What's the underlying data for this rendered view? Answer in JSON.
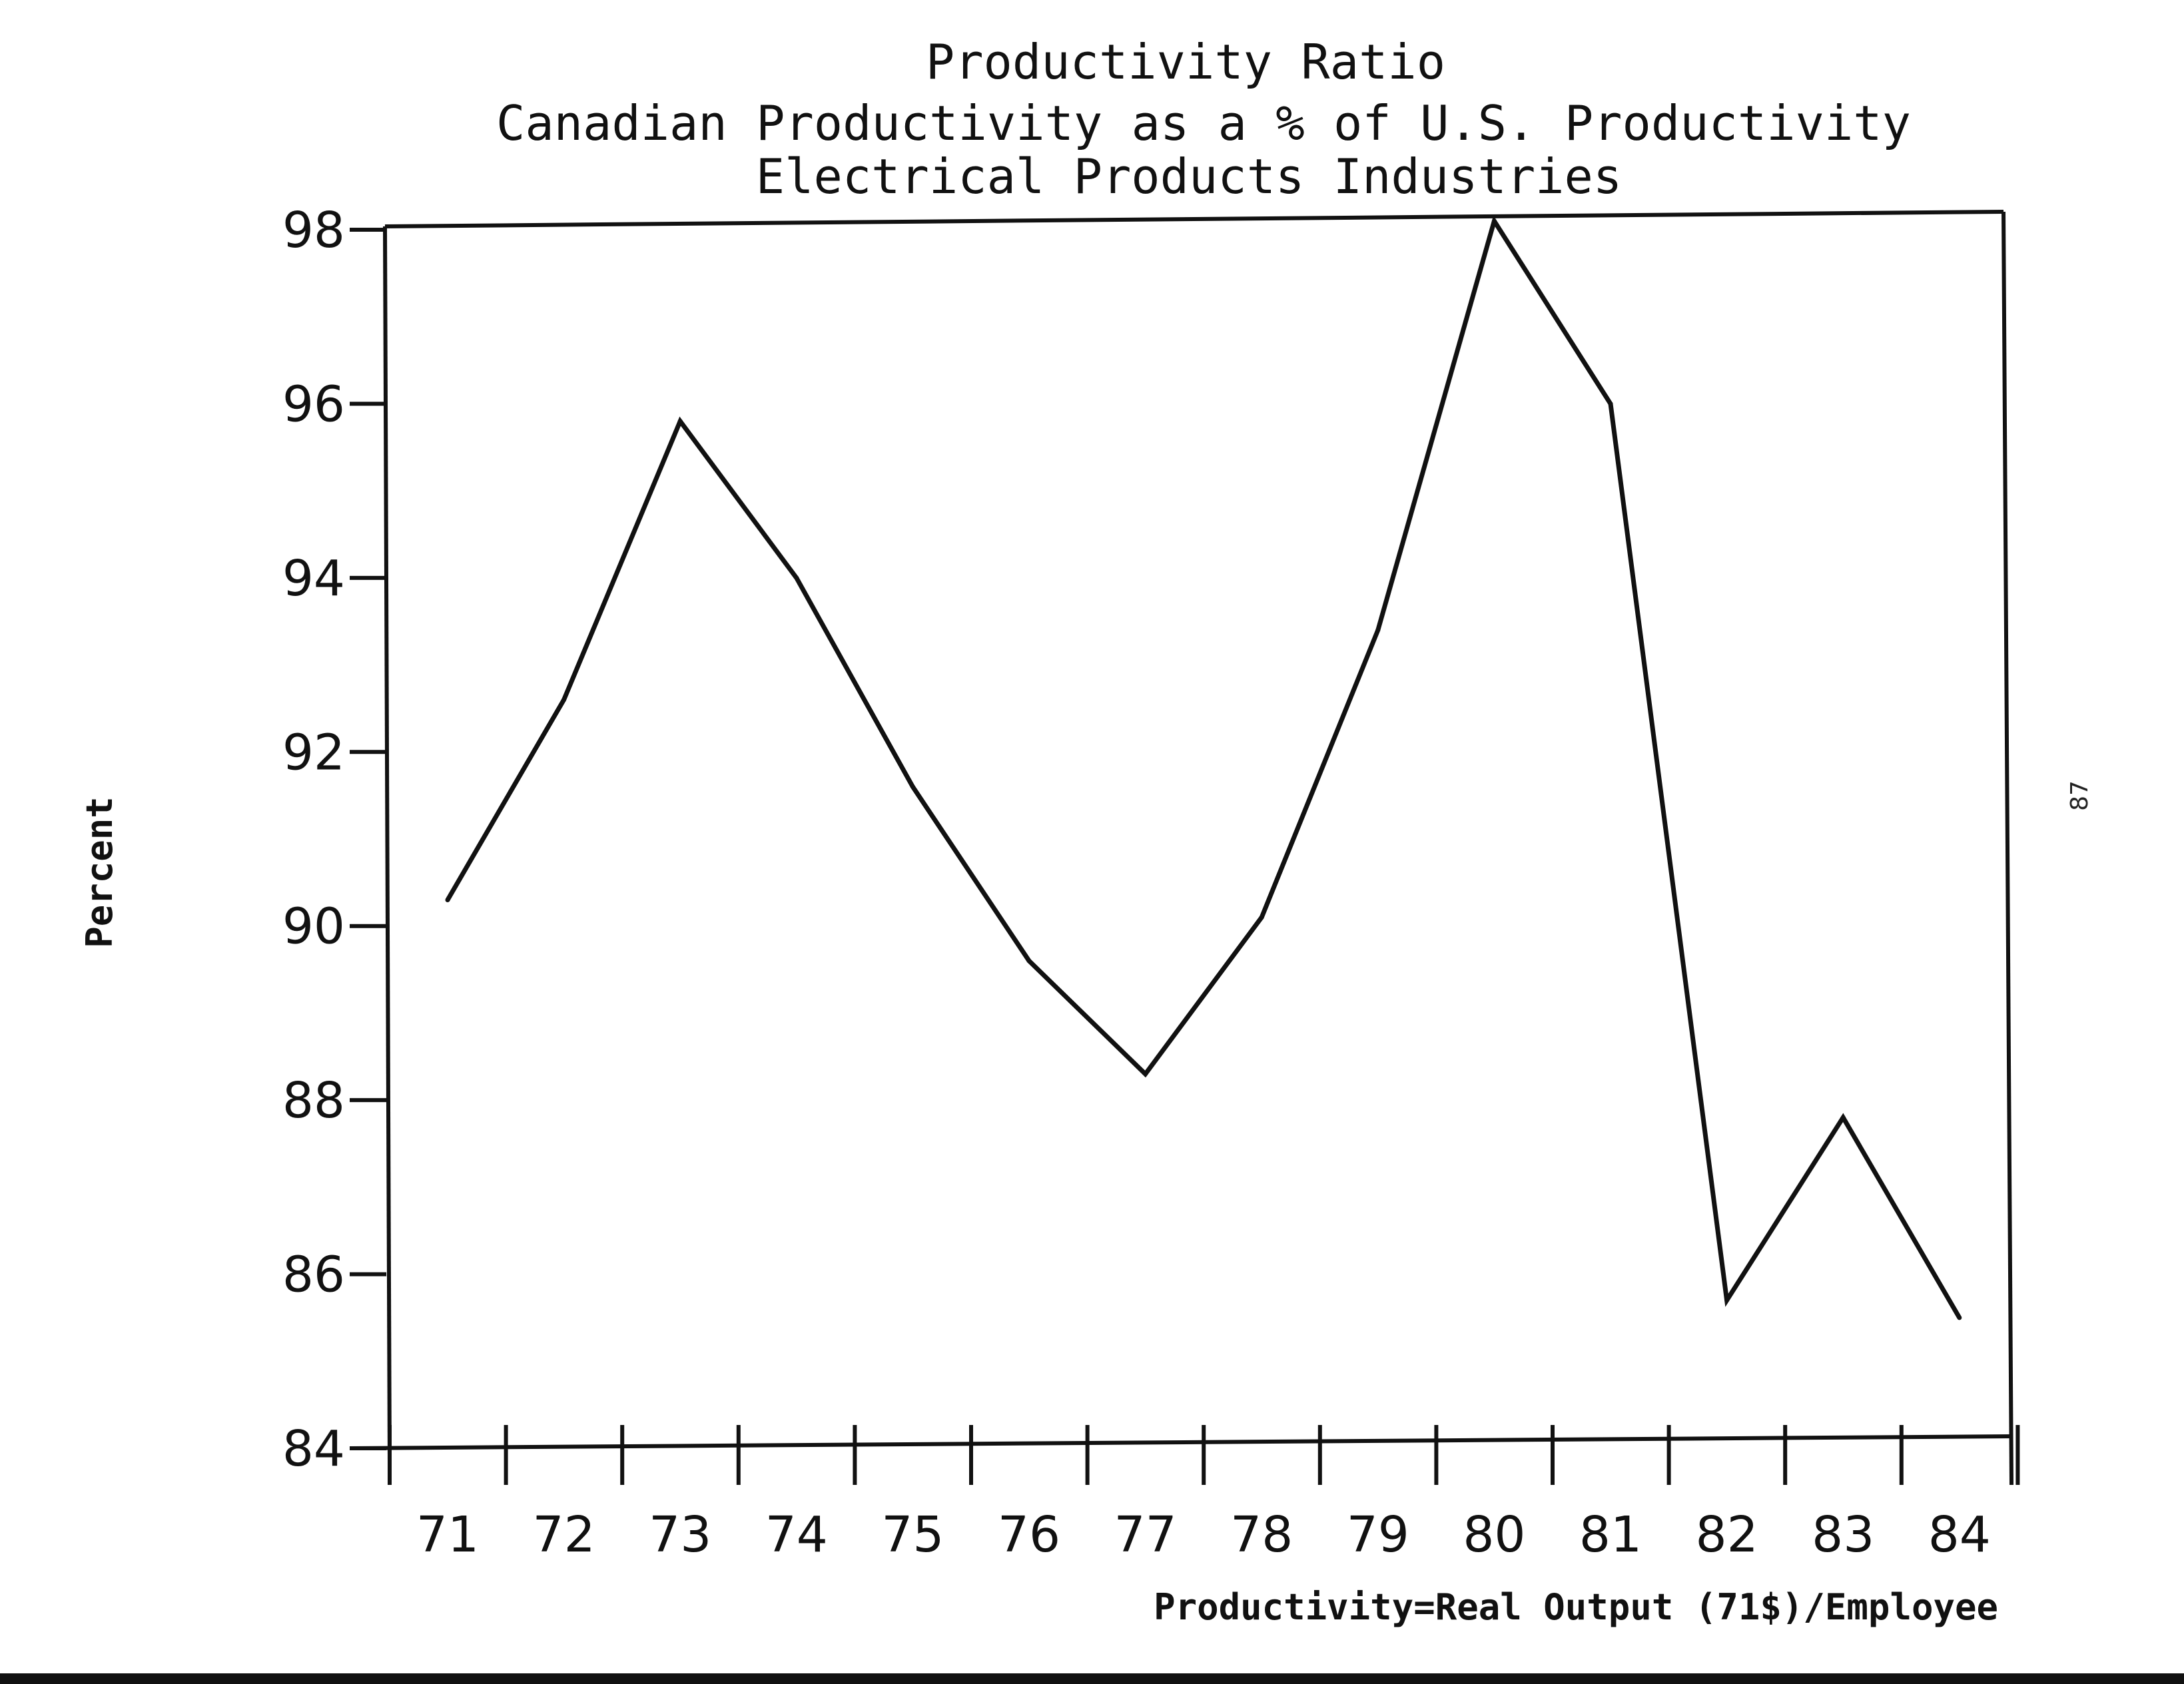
{
  "chart_data": {
    "type": "line",
    "title": "Productivity Ratio",
    "subtitle": "Canadian Productivity as a % of U.S. Productivity",
    "subtitle2": "Electrical Products Industries",
    "ylabel": "Percent",
    "xlabel": "Productivity=Real Output (71$)/Employee",
    "page_number": "87",
    "categories": [
      "71",
      "72",
      "73",
      "74",
      "75",
      "76",
      "77",
      "78",
      "79",
      "80",
      "81",
      "82",
      "83",
      "84"
    ],
    "series": [
      {
        "values": [
          90.3,
          92.6,
          95.8,
          94.0,
          91.6,
          89.6,
          88.3,
          90.1,
          93.4,
          98.1,
          96.0,
          85.7,
          87.8,
          85.5
        ]
      }
    ],
    "yticks": [
      "84",
      "86",
      "88",
      "90",
      "92",
      "94",
      "96",
      "98"
    ],
    "ylim": [
      84,
      98
    ],
    "grid": false,
    "legend": "none",
    "line_color": "#111111"
  }
}
